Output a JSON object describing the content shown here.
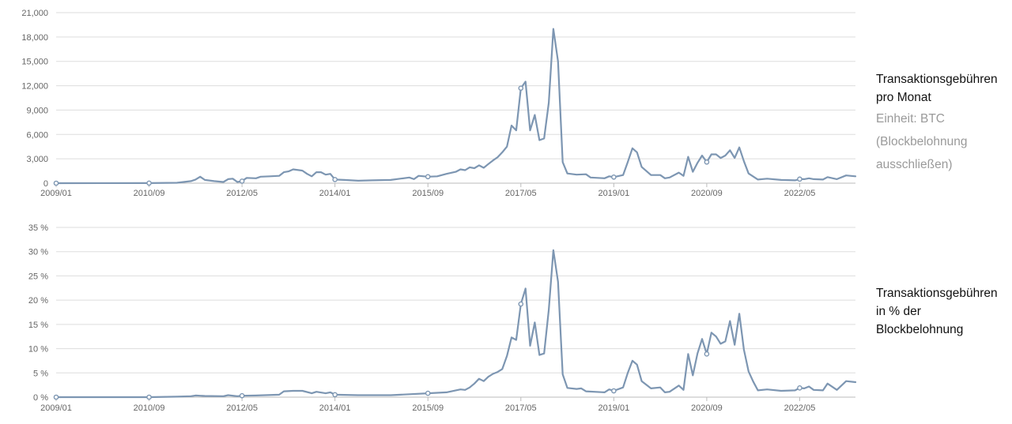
{
  "colors": {
    "line": "#7d96b2",
    "grid": "#dddddd",
    "text": "#666666"
  },
  "x_ticks": [
    "2009/01",
    "2010/09",
    "2012/05",
    "2014/01",
    "2015/09",
    "2017/05",
    "2019/01",
    "2020/09",
    "2022/05"
  ],
  "panels": [
    {
      "title_line1": "Transaktionsgebühren",
      "title_line2": "pro Monat",
      "unit": "Einheit: BTC",
      "note_line1": "(Blockbelohnung",
      "note_line2": "ausschließen)"
    },
    {
      "title_line1": "Transaktionsgebühren",
      "title_line2": "in % der",
      "title_line3": "Blockbelohnung"
    }
  ],
  "chart_data": [
    {
      "type": "line",
      "x_unit": "month",
      "x_start": "2009/01",
      "x_end": "2023/05",
      "x_ticks": [
        "2009/01",
        "2010/09",
        "2012/05",
        "2014/01",
        "2015/09",
        "2017/05",
        "2019/01",
        "2020/09",
        "2022/05"
      ],
      "y_ticks": [
        "0",
        "3,000",
        "6,000",
        "9,000",
        "12,000",
        "15,000",
        "18,000",
        "21,000"
      ],
      "ylim": [
        0,
        21000
      ],
      "grid": true,
      "series": [
        {
          "points": [
            [
              "2009/01",
              0
            ],
            [
              "2010/09",
              10
            ],
            [
              "2011/03",
              50
            ],
            [
              "2011/06",
              250
            ],
            [
              "2011/07",
              450
            ],
            [
              "2011/08",
              800
            ],
            [
              "2011/09",
              400
            ],
            [
              "2011/11",
              250
            ],
            [
              "2012/01",
              150
            ],
            [
              "2012/02",
              500
            ],
            [
              "2012/03",
              550
            ],
            [
              "2012/04",
              150
            ],
            [
              "2012/05",
              250
            ],
            [
              "2012/06",
              650
            ],
            [
              "2012/08",
              600
            ],
            [
              "2012/09",
              800
            ],
            [
              "2012/11",
              850
            ],
            [
              "2013/01",
              900
            ],
            [
              "2013/02",
              1350
            ],
            [
              "2013/03",
              1450
            ],
            [
              "2013/04",
              1700
            ],
            [
              "2013/06",
              1550
            ],
            [
              "2013/07",
              1150
            ],
            [
              "2013/08",
              850
            ],
            [
              "2013/09",
              1350
            ],
            [
              "2013/10",
              1350
            ],
            [
              "2013/11",
              1050
            ],
            [
              "2013/12",
              1150
            ],
            [
              "2014/01",
              450
            ],
            [
              "2014/03",
              400
            ],
            [
              "2014/06",
              300
            ],
            [
              "2014/09",
              350
            ],
            [
              "2015/01",
              400
            ],
            [
              "2015/05",
              700
            ],
            [
              "2015/06",
              500
            ],
            [
              "2015/07",
              900
            ],
            [
              "2015/09",
              800
            ],
            [
              "2015/11",
              850
            ],
            [
              "2016/01",
              1150
            ],
            [
              "2016/03",
              1400
            ],
            [
              "2016/04",
              1700
            ],
            [
              "2016/05",
              1600
            ],
            [
              "2016/06",
              1950
            ],
            [
              "2016/07",
              1850
            ],
            [
              "2016/08",
              2200
            ],
            [
              "2016/09",
              1900
            ],
            [
              "2016/10",
              2350
            ],
            [
              "2016/11",
              2800
            ],
            [
              "2016/12",
              3200
            ],
            [
              "2017/01",
              3800
            ],
            [
              "2017/02",
              4500
            ],
            [
              "2017/03",
              7100
            ],
            [
              "2017/04",
              6500
            ],
            [
              "2017/05",
              11700
            ],
            [
              "2017/06",
              12500
            ],
            [
              "2017/07",
              6500
            ],
            [
              "2017/08",
              8400
            ],
            [
              "2017/09",
              5300
            ],
            [
              "2017/10",
              5500
            ],
            [
              "2017/11",
              9900
            ],
            [
              "2017/12",
              19000
            ],
            [
              "2018/01",
              15000
            ],
            [
              "2018/02",
              2600
            ],
            [
              "2018/03",
              1200
            ],
            [
              "2018/05",
              1050
            ],
            [
              "2018/07",
              1100
            ],
            [
              "2018/08",
              700
            ],
            [
              "2018/11",
              600
            ],
            [
              "2018/12",
              850
            ],
            [
              "2019/01",
              750
            ],
            [
              "2019/03",
              1000
            ],
            [
              "2019/04",
              2600
            ],
            [
              "2019/05",
              4300
            ],
            [
              "2019/06",
              3800
            ],
            [
              "2019/07",
              2000
            ],
            [
              "2019/09",
              1000
            ],
            [
              "2019/11",
              1000
            ],
            [
              "2019/12",
              600
            ],
            [
              "2020/01",
              700
            ],
            [
              "2020/03",
              1300
            ],
            [
              "2020/04",
              900
            ],
            [
              "2020/05",
              3250
            ],
            [
              "2020/06",
              1400
            ],
            [
              "2020/07",
              2500
            ],
            [
              "2020/08",
              3400
            ],
            [
              "2020/09",
              2600
            ],
            [
              "2020/10",
              3550
            ],
            [
              "2020/11",
              3550
            ],
            [
              "2020/12",
              3100
            ],
            [
              "2021/01",
              3400
            ],
            [
              "2021/02",
              4050
            ],
            [
              "2021/03",
              3100
            ],
            [
              "2021/04",
              4400
            ],
            [
              "2021/05",
              2700
            ],
            [
              "2021/06",
              1200
            ],
            [
              "2021/08",
              450
            ],
            [
              "2021/10",
              550
            ],
            [
              "2022/01",
              400
            ],
            [
              "2022/04",
              350
            ],
            [
              "2022/05",
              500
            ],
            [
              "2022/06",
              500
            ],
            [
              "2022/07",
              600
            ],
            [
              "2022/08",
              500
            ],
            [
              "2022/10",
              450
            ],
            [
              "2022/11",
              750
            ],
            [
              "2023/01",
              500
            ],
            [
              "2023/03",
              950
            ],
            [
              "2023/05",
              850
            ]
          ]
        }
      ]
    },
    {
      "type": "line",
      "x_unit": "month",
      "x_start": "2009/01",
      "x_end": "2023/05",
      "x_ticks": [
        "2009/01",
        "2010/09",
        "2012/05",
        "2014/01",
        "2015/09",
        "2017/05",
        "2019/01",
        "2020/09",
        "2022/05"
      ],
      "y_ticks": [
        "0 %",
        "5 %",
        "10 %",
        "15 %",
        "20 %",
        "25 %",
        "30 %",
        "35 %"
      ],
      "ylim": [
        0,
        35
      ],
      "grid": true,
      "series": [
        {
          "points": [
            [
              "2009/01",
              0
            ],
            [
              "2010/09",
              0
            ],
            [
              "2011/03",
              0.1
            ],
            [
              "2011/06",
              0.2
            ],
            [
              "2011/07",
              0.35
            ],
            [
              "2011/09",
              0.25
            ],
            [
              "2012/01",
              0.2
            ],
            [
              "2012/02",
              0.4
            ],
            [
              "2012/04",
              0.2
            ],
            [
              "2012/05",
              0.3
            ],
            [
              "2012/08",
              0.35
            ],
            [
              "2013/01",
              0.5
            ],
            [
              "2013/02",
              1.2
            ],
            [
              "2013/04",
              1.3
            ],
            [
              "2013/06",
              1.3
            ],
            [
              "2013/08",
              0.8
            ],
            [
              "2013/09",
              1.1
            ],
            [
              "2013/11",
              0.8
            ],
            [
              "2013/12",
              1.0
            ],
            [
              "2014/01",
              0.5
            ],
            [
              "2014/06",
              0.4
            ],
            [
              "2015/01",
              0.4
            ],
            [
              "2015/05",
              0.6
            ],
            [
              "2015/09",
              0.8
            ],
            [
              "2016/01",
              1.0
            ],
            [
              "2016/04",
              1.6
            ],
            [
              "2016/05",
              1.5
            ],
            [
              "2016/06",
              2.0
            ],
            [
              "2016/07",
              2.8
            ],
            [
              "2016/08",
              3.8
            ],
            [
              "2016/09",
              3.3
            ],
            [
              "2016/10",
              4.2
            ],
            [
              "2016/11",
              4.8
            ],
            [
              "2016/12",
              5.2
            ],
            [
              "2017/01",
              5.8
            ],
            [
              "2017/02",
              8.5
            ],
            [
              "2017/03",
              12.3
            ],
            [
              "2017/04",
              11.8
            ],
            [
              "2017/05",
              19.2
            ],
            [
              "2017/06",
              22.4
            ],
            [
              "2017/07",
              10.6
            ],
            [
              "2017/08",
              15.4
            ],
            [
              "2017/09",
              8.7
            ],
            [
              "2017/10",
              9.0
            ],
            [
              "2017/11",
              18.0
            ],
            [
              "2017/12",
              30.3
            ],
            [
              "2018/01",
              23.8
            ],
            [
              "2018/02",
              4.7
            ],
            [
              "2018/03",
              1.9
            ],
            [
              "2018/05",
              1.7
            ],
            [
              "2018/06",
              1.8
            ],
            [
              "2018/07",
              1.2
            ],
            [
              "2018/11",
              1.0
            ],
            [
              "2018/12",
              1.6
            ],
            [
              "2019/01",
              1.3
            ],
            [
              "2019/03",
              2.0
            ],
            [
              "2019/04",
              5.0
            ],
            [
              "2019/05",
              7.5
            ],
            [
              "2019/06",
              6.7
            ],
            [
              "2019/07",
              3.3
            ],
            [
              "2019/09",
              1.8
            ],
            [
              "2019/11",
              2.0
            ],
            [
              "2019/12",
              1.0
            ],
            [
              "2020/01",
              1.1
            ],
            [
              "2020/03",
              2.4
            ],
            [
              "2020/04",
              1.5
            ],
            [
              "2020/05",
              8.9
            ],
            [
              "2020/06",
              4.5
            ],
            [
              "2020/07",
              9.0
            ],
            [
              "2020/08",
              12.0
            ],
            [
              "2020/09",
              8.9
            ],
            [
              "2020/10",
              13.3
            ],
            [
              "2020/11",
              12.5
            ],
            [
              "2020/12",
              11.0
            ],
            [
              "2021/01",
              11.5
            ],
            [
              "2021/02",
              15.7
            ],
            [
              "2021/03",
              10.8
            ],
            [
              "2021/04",
              17.2
            ],
            [
              "2021/05",
              9.8
            ],
            [
              "2021/06",
              5.3
            ],
            [
              "2021/07",
              3.2
            ],
            [
              "2021/08",
              1.4
            ],
            [
              "2021/10",
              1.6
            ],
            [
              "2022/01",
              1.3
            ],
            [
              "2022/04",
              1.4
            ],
            [
              "2022/05",
              1.9
            ],
            [
              "2022/06",
              1.8
            ],
            [
              "2022/07",
              2.2
            ],
            [
              "2022/08",
              1.5
            ],
            [
              "2022/10",
              1.4
            ],
            [
              "2022/11",
              2.8
            ],
            [
              "2023/01",
              1.5
            ],
            [
              "2023/03",
              3.3
            ],
            [
              "2023/05",
              3.1
            ]
          ]
        }
      ]
    }
  ]
}
